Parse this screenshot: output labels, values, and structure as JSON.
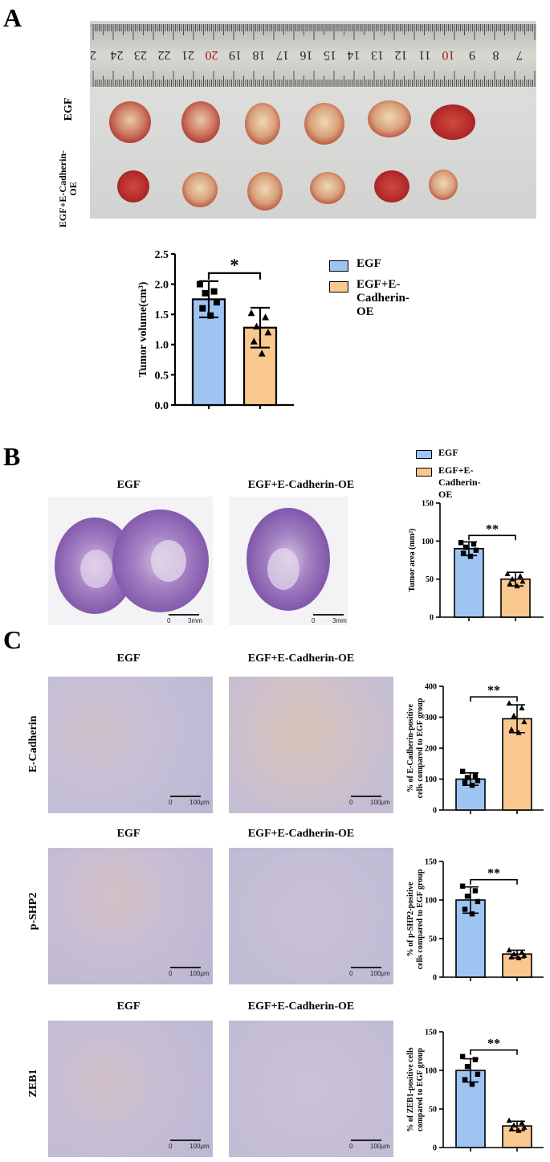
{
  "panels": {
    "A": {
      "letter": "A",
      "row_labels": [
        "EGF",
        "EGF+E-Cadherin-OE"
      ],
      "ruler_numbers": [
        "2",
        "24",
        "23",
        "22",
        "21",
        "20",
        "19",
        "18",
        "17",
        "16",
        "15",
        "14",
        "13",
        "12",
        "11",
        "10",
        "9",
        "8",
        "7"
      ],
      "legend": [
        {
          "name": "EGF",
          "color": "#9ec5f2"
        },
        {
          "name": "EGF+E-Cadherin-OE",
          "color": "#f9c88f"
        }
      ]
    },
    "B": {
      "letter": "B",
      "col_labels": [
        "EGF",
        "EGF+E-Cadherin-OE"
      ],
      "scale_labels": [
        "0",
        "3mm"
      ],
      "legend": [
        {
          "name": "EGF",
          "color": "#9ec5f2"
        },
        {
          "name": "EGF+E-Cadherin-OE",
          "color": "#f9c88f"
        }
      ]
    },
    "C": {
      "letter": "C",
      "rows": [
        {
          "row_label": "E-Cadherin",
          "col_labels": [
            "EGF",
            "EGF+E-Cadherin-OE"
          ]
        },
        {
          "row_label": "p-SHP2",
          "col_labels": [
            "EGF",
            "EGF+E-Cadherin-OE"
          ]
        },
        {
          "row_label": "ZEB1",
          "col_labels": [
            "EGF",
            "EGF+E-Cadherin-OE"
          ]
        }
      ],
      "scale_labels": [
        "0",
        "100μm"
      ]
    }
  },
  "colors": {
    "egf": "#9ec5f2",
    "oe": "#f9c88f"
  },
  "chart_data": [
    {
      "id": "tumor-volume",
      "type": "bar",
      "categories": [
        "EGF",
        "EGF+E-Cadherin-OE"
      ],
      "values": [
        1.75,
        1.28
      ],
      "errors": [
        0.3,
        0.33
      ],
      "points": [
        [
          2.0,
          1.88,
          1.85,
          1.7,
          1.6,
          1.48
        ],
        [
          1.52,
          1.45,
          1.3,
          1.2,
          1.05,
          0.85
        ]
      ],
      "ylabel": "Tumor volume(cm³)",
      "ylim": [
        0,
        2.5
      ],
      "yticks": [
        0.0,
        0.5,
        1.0,
        1.5,
        2.0,
        2.5
      ],
      "ytick_labels": [
        "0.0",
        "0.5",
        "1.0",
        "1.5",
        "2.0",
        "2.5"
      ],
      "significance": "*"
    },
    {
      "id": "tumor-area",
      "type": "bar",
      "categories": [
        "EGF",
        "EGF+E-Cadherin-OE"
      ],
      "values": [
        90,
        50
      ],
      "errors": [
        9,
        9
      ],
      "points": [
        [
          98,
          96,
          92,
          88,
          84,
          80
        ],
        [
          57,
          54,
          50,
          47,
          44,
          41
        ]
      ],
      "ylabel": "Tumor area (mm²)",
      "ylim": [
        0,
        150
      ],
      "yticks": [
        0,
        50,
        100,
        150
      ],
      "ytick_labels": [
        "0",
        "50",
        "100",
        "150"
      ],
      "significance": "**"
    },
    {
      "id": "e-cadherin-positive",
      "type": "bar",
      "categories": [
        "EGF",
        "EGF+E-Cadherin-OE"
      ],
      "values": [
        100,
        295
      ],
      "errors": [
        20,
        45
      ],
      "points": [
        [
          125,
          110,
          105,
          95,
          90,
          80
        ],
        [
          345,
          330,
          305,
          285,
          260,
          250
        ]
      ],
      "ylabel": "% of E-Cadherin-positive cells compared to EGF group",
      "ylabel_lines": [
        "% of E-Cadherin-positive",
        "cells compared to EGF group"
      ],
      "ylim": [
        0,
        400
      ],
      "yticks": [
        0,
        100,
        200,
        300,
        400
      ],
      "ytick_labels": [
        "0",
        "100",
        "200",
        "300",
        "400"
      ],
      "significance": "**"
    },
    {
      "id": "p-shp2-positive",
      "type": "bar",
      "categories": [
        "EGF",
        "EGF+E-Cadherin-OE"
      ],
      "values": [
        100,
        30
      ],
      "errors": [
        17,
        5
      ],
      "points": [
        [
          118,
          112,
          105,
          98,
          88,
          82
        ],
        [
          35,
          32,
          30,
          28,
          26,
          25
        ]
      ],
      "ylabel": "% of p-SHP2-positive cells compared to EGF group",
      "ylabel_lines": [
        "% of p-SHP2-positive",
        "cells compared to EGF group"
      ],
      "ylim": [
        0,
        150
      ],
      "yticks": [
        0,
        50,
        100,
        150
      ],
      "ytick_labels": [
        "0",
        "50",
        "100",
        "150"
      ],
      "significance": "**"
    },
    {
      "id": "zeb1-positive",
      "type": "bar",
      "categories": [
        "EGF",
        "EGF+E-Cadherin-OE"
      ],
      "values": [
        100,
        28
      ],
      "errors": [
        15,
        6
      ],
      "points": [
        [
          118,
          114,
          105,
          95,
          88,
          82
        ],
        [
          35,
          32,
          29,
          26,
          24,
          22
        ]
      ],
      "ylabel": "% of ZEB1-positive cells compared to EGF group",
      "ylabel_lines": [
        "% of ZEB1-positive cells",
        "compared to EGF group"
      ],
      "ylim": [
        0,
        150
      ],
      "yticks": [
        0,
        50,
        100,
        150
      ],
      "ytick_labels": [
        "0",
        "50",
        "100",
        "150"
      ],
      "significance": "**"
    }
  ]
}
